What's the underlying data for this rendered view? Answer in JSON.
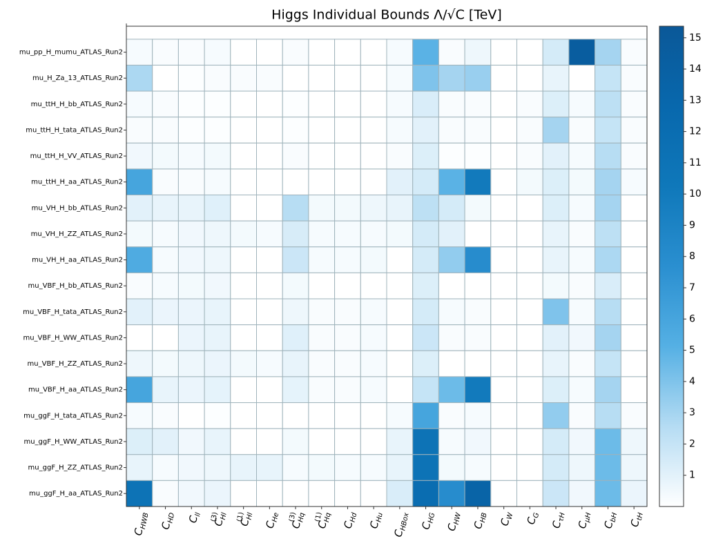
{
  "chart_data": {
    "type": "heatmap",
    "title": "Higgs Individual Bounds Λ/√C [TeV]",
    "rows": [
      "mu_pp_H_mumu_ATLAS_Run2",
      "mu_H_Za_13_ATLAS_Run2",
      "mu_ttH_H_bb_ATLAS_Run2",
      "mu_ttH_H_tata_ATLAS_Run2",
      "mu_ttH_H_VV_ATLAS_Run2",
      "mu_ttH_H_aa_ATLAS_Run2",
      "mu_VH_H_bb_ATLAS_Run2",
      "mu_VH_H_ZZ_ATLAS_Run2",
      "mu_VH_H_aa_ATLAS_Run2",
      "mu_VBF_H_bb_ATLAS_Run2",
      "mu_VBF_H_tata_ATLAS_Run2",
      "mu_VBF_H_WW_ATLAS_Run2",
      "mu_VBF_H_ZZ_ATLAS_Run2",
      "mu_VBF_H_aa_ATLAS_Run2",
      "mu_ggF_H_tata_ATLAS_Run2",
      "mu_ggF_H_WW_ATLAS_Run2",
      "mu_ggF_H_ZZ_ATLAS_Run2",
      "mu_ggF_H_aa_ATLAS_Run2"
    ],
    "categories": [
      {
        "text": "C",
        "sub": "HWB"
      },
      {
        "text": "C",
        "sub": "HD"
      },
      {
        "text": "C",
        "sub": "ll"
      },
      {
        "text": "C",
        "sub": "Hl",
        "sup": "(3)"
      },
      {
        "text": "C",
        "sub": "Hl",
        "sup": "(1)"
      },
      {
        "text": "C",
        "sub": "He"
      },
      {
        "text": "C",
        "sub": "Hq",
        "sup": "(3)"
      },
      {
        "text": "C",
        "sub": "Hq",
        "sup": "(1)"
      },
      {
        "text": "C",
        "sub": "Hd"
      },
      {
        "text": "C",
        "sub": "Hu"
      },
      {
        "text": "C",
        "sub": "HBox"
      },
      {
        "text": "C",
        "sub": "HG"
      },
      {
        "text": "C",
        "sub": "HW"
      },
      {
        "text": "C",
        "sub": "HB"
      },
      {
        "text": "C",
        "sub": "W"
      },
      {
        "text": "C",
        "sub": "G"
      },
      {
        "text": "C",
        "sub": "τH"
      },
      {
        "text": "C",
        "sub": "μH"
      },
      {
        "text": "C",
        "sub": "bH"
      },
      {
        "text": "C",
        "sub": "tH"
      }
    ],
    "values": [
      [
        0.3,
        0.2,
        0.2,
        0.3,
        0,
        0,
        0.2,
        0,
        0,
        0,
        0.3,
        5,
        0.2,
        0.6,
        0,
        0,
        1.5,
        14.5,
        3,
        0.2
      ],
      [
        2.8,
        0,
        0.1,
        0.2,
        0.2,
        0.2,
        0,
        0,
        0,
        0,
        0.3,
        4,
        3,
        3.3,
        0,
        0,
        0.8,
        0,
        2,
        0.2
      ],
      [
        0.3,
        0.2,
        0.1,
        0.1,
        0,
        0,
        0.1,
        0,
        0,
        0,
        0.3,
        1.3,
        0.2,
        0.2,
        0,
        0.2,
        1.2,
        0.3,
        2.3,
        0.2
      ],
      [
        0.2,
        0.2,
        0.1,
        0.1,
        0,
        0,
        0.1,
        0,
        0,
        0,
        0.3,
        1,
        0.2,
        0.2,
        0,
        0.2,
        3,
        0.2,
        2,
        0.2
      ],
      [
        0.5,
        0.4,
        0.3,
        0.4,
        0,
        0,
        0.2,
        0,
        0,
        0,
        0.2,
        1.2,
        0.1,
        0.1,
        0,
        0.2,
        1,
        0.3,
        2.5,
        0.2
      ],
      [
        6,
        0.2,
        0.2,
        0.3,
        0,
        0,
        0,
        0,
        0,
        0,
        1,
        1.5,
        5,
        10,
        0,
        0.4,
        1.2,
        0.4,
        3,
        0.3
      ],
      [
        1,
        0.8,
        0.8,
        1.1,
        0,
        0,
        2.5,
        0.4,
        0.4,
        0.6,
        0.8,
        2.3,
        1.5,
        0.4,
        0,
        0,
        1.2,
        0.3,
        3,
        0
      ],
      [
        0.4,
        0.3,
        0.5,
        0.6,
        0.4,
        0.3,
        1.4,
        0.3,
        0.3,
        0.3,
        0.4,
        1.5,
        1,
        0,
        0,
        0,
        0.8,
        0.2,
        2.3,
        0
      ],
      [
        5.5,
        0.3,
        0.5,
        0.6,
        0,
        0,
        1.8,
        0.3,
        0.3,
        0.4,
        0,
        1.5,
        3.5,
        8,
        0,
        0,
        0.8,
        0.3,
        2.8,
        0
      ],
      [
        0.2,
        0.3,
        0.4,
        0.5,
        0,
        0,
        0.4,
        0,
        0,
        0,
        0,
        1.2,
        0,
        0,
        0,
        0,
        0.4,
        0.2,
        1.3,
        0
      ],
      [
        1,
        0.7,
        0.7,
        0.8,
        0,
        0,
        0.6,
        0.2,
        0.2,
        0.3,
        0,
        1.5,
        0.3,
        0.2,
        0,
        0,
        4,
        0.3,
        2.5,
        0
      ],
      [
        0,
        0,
        0.7,
        0.8,
        0,
        0,
        1.1,
        0.2,
        0.2,
        0.3,
        0,
        1.8,
        0.2,
        0.2,
        0,
        0,
        1,
        0.5,
        3,
        0
      ],
      [
        0.6,
        0.4,
        0.6,
        0.7,
        0.4,
        0.3,
        0.8,
        0.2,
        0.2,
        0.3,
        0,
        1.2,
        0,
        0,
        0,
        0,
        0.8,
        0.2,
        2,
        0
      ],
      [
        6,
        0.8,
        0.7,
        0.9,
        0,
        0,
        0.9,
        0.2,
        0.2,
        0.3,
        0,
        2,
        4.5,
        10,
        0,
        0,
        1.2,
        0.3,
        3,
        0
      ],
      [
        0.3,
        0.2,
        0,
        0.1,
        0,
        0,
        0,
        0,
        0,
        0,
        0.3,
        6,
        0.2,
        0.3,
        0,
        0,
        3.5,
        0.2,
        2.5,
        0.2
      ],
      [
        1.2,
        1,
        0.5,
        0.8,
        0,
        0,
        0.4,
        0,
        0,
        0,
        0.8,
        11,
        0.3,
        0.5,
        0,
        0,
        1.5,
        0.5,
        4.5,
        0.6
      ],
      [
        0.8,
        0.3,
        0.5,
        0.6,
        0.8,
        0.8,
        0.3,
        0.4,
        0.3,
        0.3,
        0.8,
        11,
        0.4,
        0.3,
        0,
        0,
        1.5,
        0.6,
        4.5,
        0.6
      ],
      [
        11,
        0.2,
        0.5,
        0.7,
        0,
        0,
        0,
        0,
        0,
        0,
        1.3,
        12,
        8,
        13.5,
        0,
        0,
        1.8,
        0.5,
        4.5,
        0.7
      ]
    ],
    "zlim": [
      0,
      15.37
    ],
    "zticks": [
      1,
      2,
      3,
      4,
      5,
      6,
      7,
      8,
      9,
      10,
      11,
      12,
      13,
      14,
      15
    ],
    "colormap": [
      "#ffffff",
      "#b5dcf3",
      "#55b0e4",
      "#2a8fd0",
      "#0f78ba",
      "#0868ad",
      "#0a5898"
    ],
    "cell_edge_color": "#9fb3bb"
  }
}
